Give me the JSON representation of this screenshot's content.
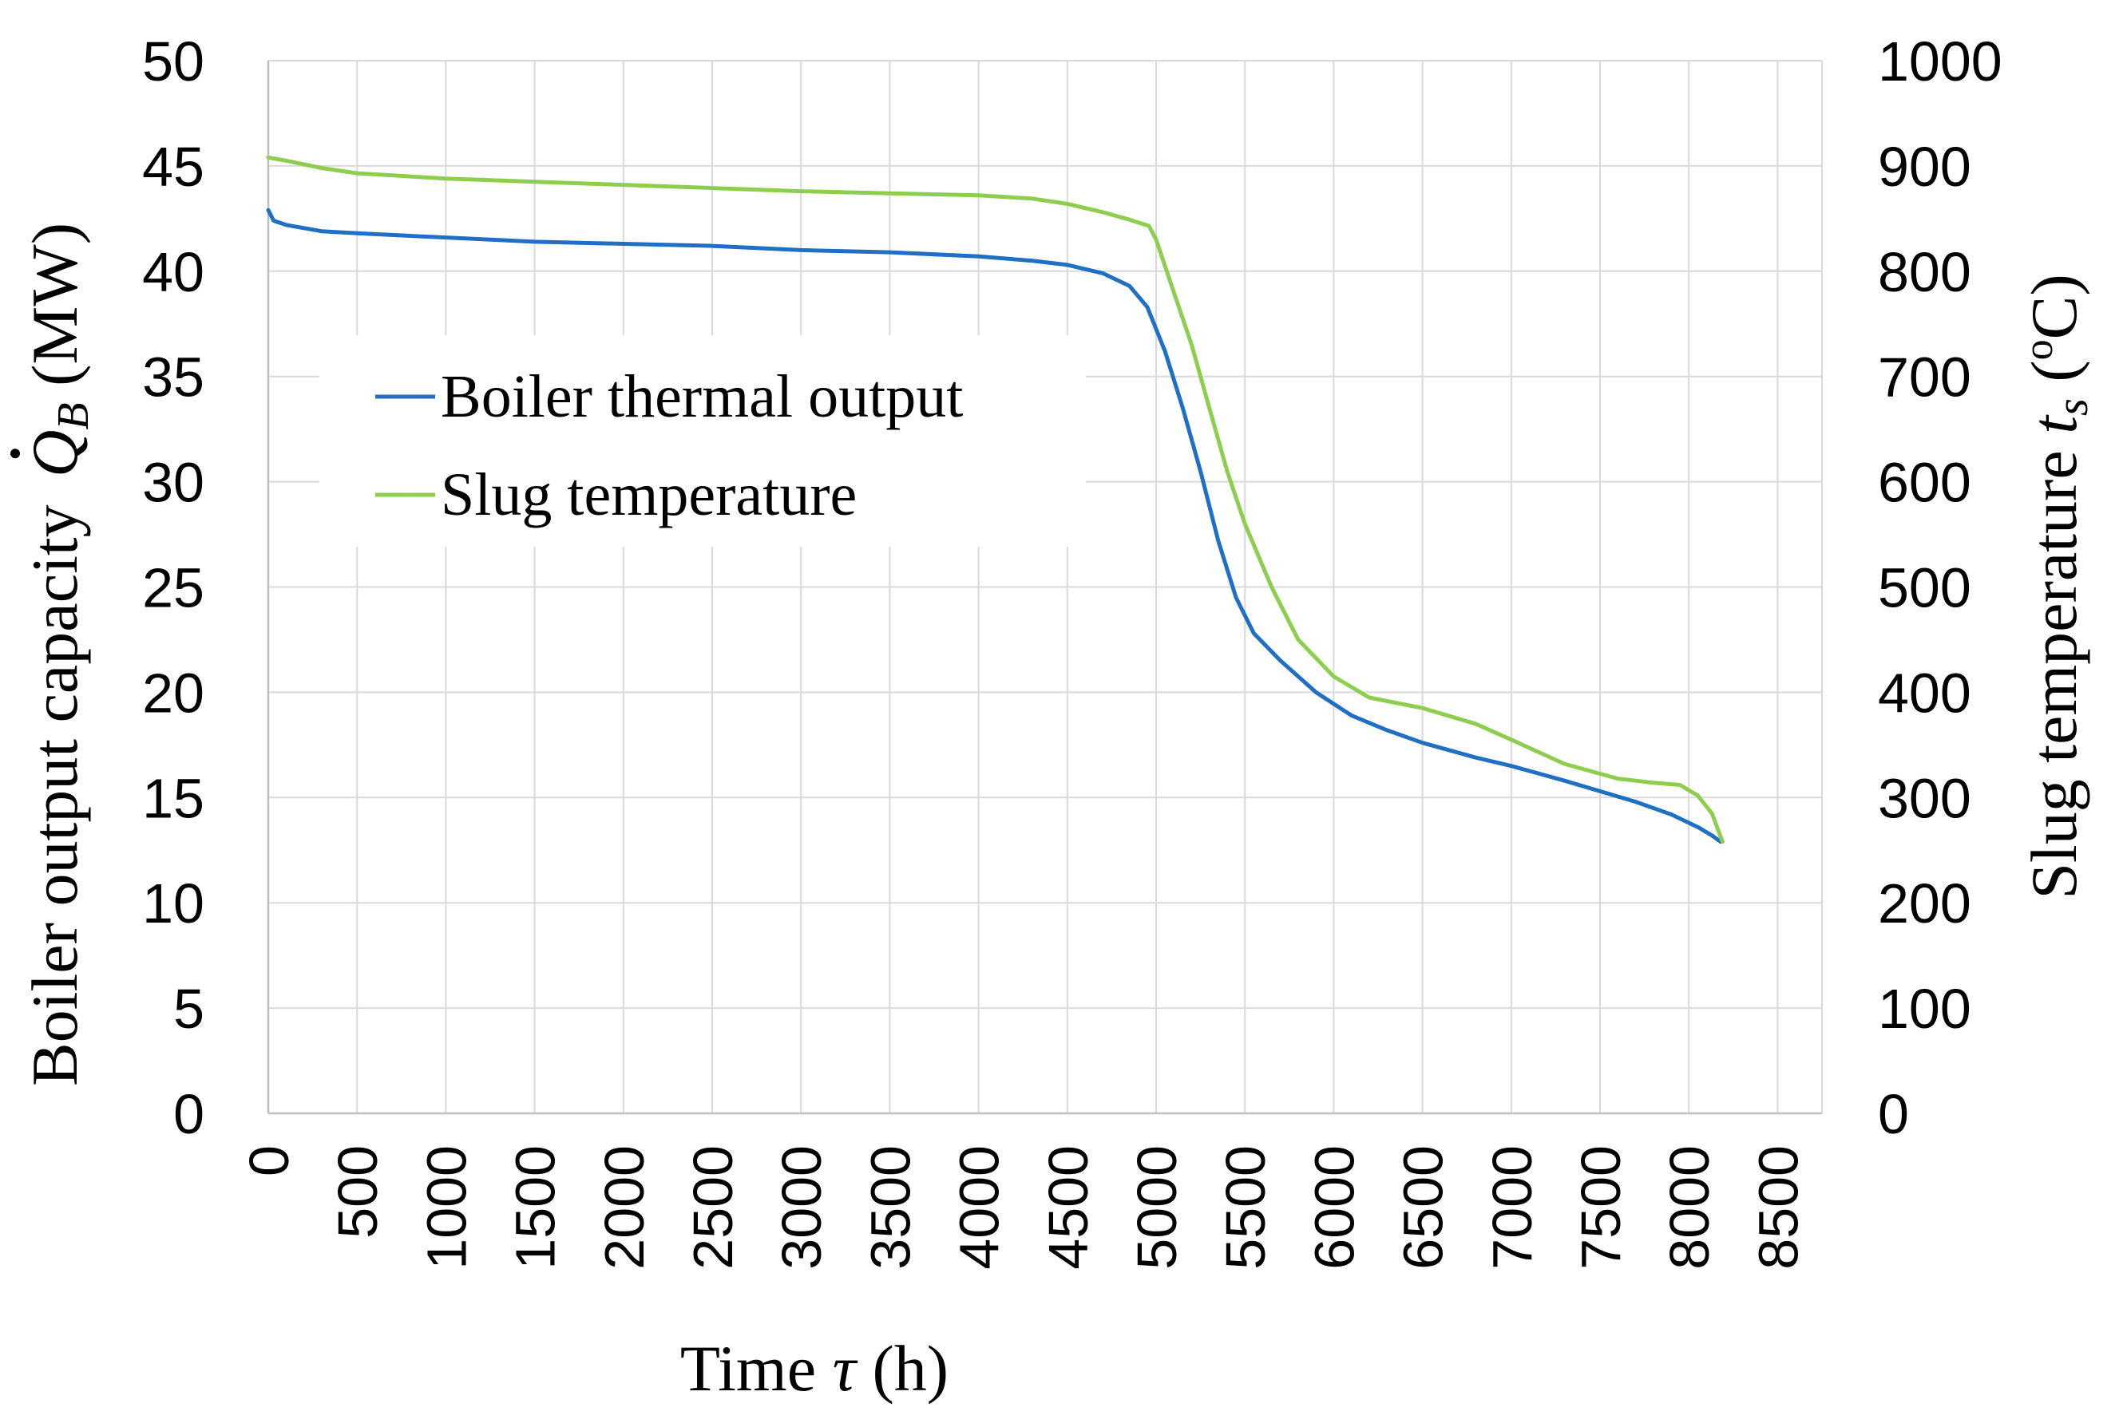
{
  "chart_data": {
    "type": "line",
    "title": "",
    "xlabel": {
      "prefix": "Time ",
      "symbol": "τ",
      "suffix": " (h)"
    },
    "ylabel_left": {
      "text": "Boiler output capacity ",
      "symbol": "Q",
      "subscript": "B",
      "unit": " (MW)"
    },
    "ylabel_right": {
      "text": "Slug temperature ",
      "symbol": "t",
      "subscript": "s",
      "unit_open": " (",
      "unit_sup": "o",
      "unit_close": "C)"
    },
    "xlim": [
      0,
      8750
    ],
    "ylim_left": [
      0,
      50
    ],
    "ylim_right": [
      0,
      1000
    ],
    "x_ticks": [
      "0",
      "500",
      "1000",
      "1500",
      "2000",
      "2500",
      "3000",
      "3500",
      "4000",
      "4500",
      "5000",
      "5500",
      "6000",
      "6500",
      "7000",
      "7500",
      "8000",
      "8500"
    ],
    "y_ticks_left": [
      "0",
      "5",
      "10",
      "15",
      "20",
      "25",
      "30",
      "35",
      "40",
      "45",
      "50"
    ],
    "y_ticks_right": [
      "0",
      "100",
      "200",
      "300",
      "400",
      "500",
      "600",
      "700",
      "800",
      "900",
      "1000"
    ],
    "legend": {
      "placement": "upper-left"
    },
    "series": [
      {
        "name": "Boiler thermal output",
        "axis": "left",
        "color": "#1f6fc4",
        "x": [
          0,
          30,
          100,
          300,
          500,
          1000,
          1500,
          2000,
          2500,
          3000,
          3500,
          4000,
          4300,
          4500,
          4700,
          4850,
          4950,
          5050,
          5150,
          5250,
          5350,
          5450,
          5550,
          5700,
          5900,
          6100,
          6300,
          6500,
          6800,
          7000,
          7300,
          7500,
          7700,
          7900,
          8050,
          8130,
          8180
        ],
        "y": [
          42.9,
          42.4,
          42.2,
          41.9,
          41.8,
          41.6,
          41.4,
          41.3,
          41.2,
          41.0,
          40.9,
          40.7,
          40.5,
          40.3,
          39.9,
          39.3,
          38.3,
          36.2,
          33.5,
          30.5,
          27.2,
          24.5,
          22.8,
          21.5,
          20.0,
          18.9,
          18.2,
          17.6,
          16.9,
          16.5,
          15.8,
          15.3,
          14.8,
          14.2,
          13.6,
          13.2,
          12.9
        ]
      },
      {
        "name": "Slug temperature",
        "axis": "right",
        "color": "#8dce4e",
        "x": [
          0,
          100,
          300,
          500,
          800,
          1000,
          1500,
          2000,
          2500,
          3000,
          3500,
          4000,
          4300,
          4500,
          4700,
          4850,
          4960,
          5000,
          5100,
          5200,
          5300,
          5400,
          5500,
          5650,
          5800,
          6000,
          6200,
          6500,
          6800,
          7000,
          7300,
          7600,
          7800,
          7950,
          8050,
          8130,
          8190
        ],
        "y": [
          908,
          905,
          898,
          893,
          890,
          888,
          885,
          882,
          879,
          876,
          874,
          872,
          869,
          864,
          856,
          849,
          843,
          830,
          780,
          730,
          670,
          610,
          560,
          500,
          450,
          415,
          395,
          385,
          370,
          355,
          332,
          318,
          314,
          312,
          302,
          285,
          258
        ]
      }
    ]
  }
}
